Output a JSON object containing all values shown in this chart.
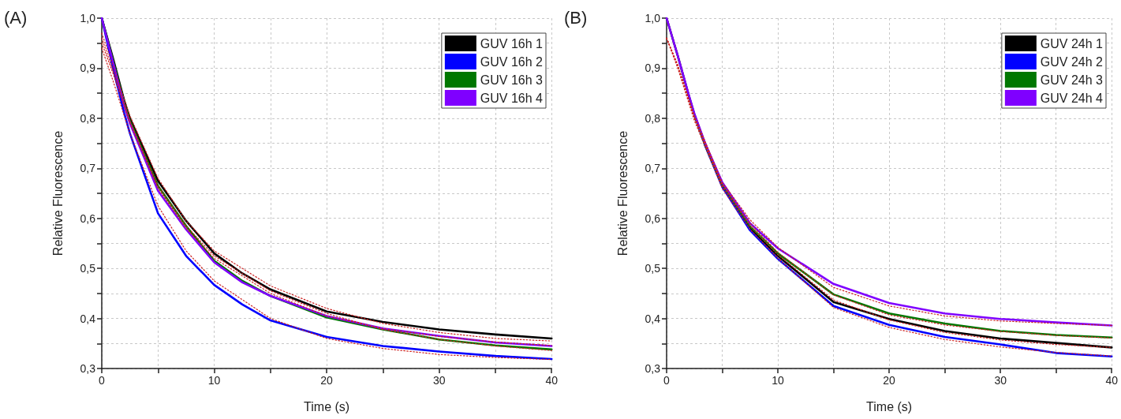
{
  "chart_data": [
    {
      "type": "line",
      "title": "(A)",
      "xlabel": "Time (s)",
      "ylabel": "Relative Fluorescence",
      "x": [
        0,
        1,
        2,
        2.5,
        5,
        7.5,
        10,
        12.5,
        15,
        20,
        25,
        30,
        35,
        40
      ],
      "xlim": [
        0,
        40
      ],
      "xticks": [
        0,
        {
          "value": 5,
          "label": null
        },
        10,
        {
          "value": 15,
          "label": null
        },
        20,
        {
          "value": 25,
          "label": null
        },
        30,
        {
          "value": 35,
          "label": null
        },
        40
      ],
      "ylim": [
        0.3,
        1.0
      ],
      "yticks": [
        {
          "value": 0.3,
          "label": "0,3"
        },
        {
          "value": 0.35,
          "label": null
        },
        {
          "value": 0.4,
          "label": "0,4"
        },
        {
          "value": 0.45,
          "label": null
        },
        {
          "value": 0.5,
          "label": "0,5"
        },
        {
          "value": 0.55,
          "label": null
        },
        {
          "value": 0.6,
          "label": "0,6"
        },
        {
          "value": 0.65,
          "label": null
        },
        {
          "value": 0.7,
          "label": "0,7"
        },
        {
          "value": 0.75,
          "label": null
        },
        {
          "value": 0.8,
          "label": "0,8"
        },
        {
          "value": 0.85,
          "label": null
        },
        {
          "value": 0.9,
          "label": "0,9"
        },
        {
          "value": 0.95,
          "label": null
        },
        {
          "value": 1.0,
          "label": "1,0"
        }
      ],
      "grid": true,
      "legend": "top right",
      "marker": "none",
      "line_style": "solid",
      "series": [
        {
          "name": "GUV 16h 1",
          "color": "#000000",
          "values": [
            1.0,
            0.92,
            0.835,
            0.8,
            0.675,
            0.595,
            0.53,
            0.49,
            0.458,
            0.414,
            0.393,
            0.378,
            0.368,
            0.36
          ]
        },
        {
          "name": "GUV 16h 2",
          "color": "#0000ff",
          "values": [
            1.0,
            0.9,
            0.81,
            0.77,
            0.61,
            0.525,
            0.467,
            0.428,
            0.396,
            0.363,
            0.345,
            0.334,
            0.325,
            0.319
          ]
        },
        {
          "name": "GUV 16h 3",
          "color": "#007700",
          "values": [
            1.0,
            0.915,
            0.83,
            0.795,
            0.665,
            0.585,
            0.515,
            0.475,
            0.445,
            0.402,
            0.378,
            0.358,
            0.346,
            0.338
          ]
        },
        {
          "name": "GUV 16h 4",
          "color": "#7f00ff",
          "values": [
            1.0,
            0.912,
            0.825,
            0.79,
            0.655,
            0.578,
            0.512,
            0.472,
            0.445,
            0.405,
            0.38,
            0.365,
            0.352,
            0.345
          ]
        },
        {
          "type": "line",
          "line_style": "dotted",
          "color": "#cc2222",
          "x": [
            0,
            1,
            2.5,
            5,
            7.5,
            10,
            15,
            20,
            25,
            30,
            35,
            40
          ],
          "values": [
            0.97,
            0.905,
            0.805,
            0.68,
            0.595,
            0.535,
            0.465,
            0.42,
            0.39,
            0.372,
            0.36,
            0.355
          ]
        },
        {
          "type": "line",
          "line_style": "dotted",
          "color": "#cc2222",
          "x": [
            0,
            1,
            2.5,
            5,
            7.5,
            10,
            15,
            20,
            25,
            30,
            35,
            40
          ],
          "values": [
            0.94,
            0.875,
            0.77,
            0.625,
            0.535,
            0.475,
            0.4,
            0.36,
            0.34,
            0.328,
            0.322,
            0.318
          ]
        },
        {
          "type": "line",
          "line_style": "dotted",
          "color": "#cc2222",
          "x": [
            0,
            1,
            2.5,
            5,
            7.5,
            10,
            15,
            20,
            25,
            30,
            35,
            40
          ],
          "values": [
            0.96,
            0.895,
            0.795,
            0.665,
            0.585,
            0.525,
            0.455,
            0.41,
            0.378,
            0.358,
            0.345,
            0.336
          ]
        },
        {
          "type": "line",
          "line_style": "dotted",
          "color": "#cc2222",
          "x": [
            0,
            1,
            2.5,
            5,
            7.5,
            10,
            15,
            20,
            25,
            30,
            35,
            40
          ],
          "values": [
            0.95,
            0.89,
            0.79,
            0.66,
            0.58,
            0.52,
            0.45,
            0.405,
            0.38,
            0.364,
            0.353,
            0.346
          ]
        }
      ]
    },
    {
      "type": "line",
      "title": "(B)",
      "xlabel": "Time (s)",
      "ylabel": "Relative Fluorescence",
      "x": [
        0,
        1,
        2,
        2.5,
        3.5,
        5,
        7.5,
        10,
        15,
        20,
        25,
        30,
        35,
        40
      ],
      "xlim": [
        0,
        40
      ],
      "xticks": [
        0,
        {
          "value": 5,
          "label": null
        },
        10,
        {
          "value": 15,
          "label": null
        },
        20,
        {
          "value": 25,
          "label": null
        },
        30,
        {
          "value": 35,
          "label": null
        },
        40
      ],
      "ylim": [
        0.3,
        1.0
      ],
      "yticks": [
        {
          "value": 0.3,
          "label": "0,3"
        },
        {
          "value": 0.35,
          "label": null
        },
        {
          "value": 0.4,
          "label": "0,4"
        },
        {
          "value": 0.45,
          "label": null
        },
        {
          "value": 0.5,
          "label": "0,5"
        },
        {
          "value": 0.55,
          "label": null
        },
        {
          "value": 0.6,
          "label": "0,6"
        },
        {
          "value": 0.65,
          "label": null
        },
        {
          "value": 0.7,
          "label": "0,7"
        },
        {
          "value": 0.75,
          "label": null
        },
        {
          "value": 0.8,
          "label": "0,8"
        },
        {
          "value": 0.85,
          "label": null
        },
        {
          "value": 0.9,
          "label": "0,9"
        },
        {
          "value": 0.95,
          "label": null
        },
        {
          "value": 1.0,
          "label": "1,0"
        }
      ],
      "grid": true,
      "legend": "top right",
      "marker": "none",
      "line_style": "solid",
      "series": [
        {
          "name": "GUV 24h 1",
          "color": "#000000",
          "values": [
            1.0,
            0.925,
            0.845,
            0.807,
            0.745,
            0.666,
            0.58,
            0.525,
            0.433,
            0.399,
            0.375,
            0.36,
            0.351,
            0.342
          ]
        },
        {
          "name": "GUV 24h 2",
          "color": "#0000ff",
          "values": [
            null,
            null,
            null,
            0.807,
            0.743,
            0.663,
            0.576,
            0.519,
            0.425,
            0.387,
            0.363,
            0.348,
            0.331,
            0.324
          ]
        },
        {
          "name": "GUV 24h 3",
          "color": "#007700",
          "values": [
            null,
            null,
            null,
            0.807,
            0.745,
            0.668,
            0.584,
            0.53,
            0.448,
            0.41,
            0.39,
            0.375,
            0.367,
            0.362
          ]
        },
        {
          "name": "GUV 24h 4",
          "color": "#7f00ff",
          "values": [
            1.0,
            0.925,
            0.846,
            0.809,
            0.748,
            0.672,
            0.59,
            0.54,
            0.469,
            0.431,
            0.41,
            0.399,
            0.392,
            0.386
          ]
        },
        {
          "type": "line",
          "line_style": "dotted",
          "color": "#cc2222",
          "x": [
            0,
            1,
            2.5,
            5,
            7.5,
            10,
            15,
            20,
            25,
            30,
            35,
            40
          ],
          "values": [
            0.96,
            0.905,
            0.8,
            0.665,
            0.585,
            0.527,
            0.437,
            0.397,
            0.372,
            0.357,
            0.348,
            0.342
          ]
        },
        {
          "type": "line",
          "line_style": "dotted",
          "color": "#cc2222",
          "x": [
            0,
            1,
            2.5,
            5,
            7.5,
            10,
            15,
            20,
            25,
            30,
            35,
            40
          ],
          "values": [
            0.96,
            0.9,
            0.795,
            0.66,
            0.578,
            0.52,
            0.422,
            0.382,
            0.358,
            0.343,
            0.332,
            0.325
          ]
        },
        {
          "type": "line",
          "line_style": "dotted",
          "color": "#cc2222",
          "x": [
            0,
            1,
            2.5,
            5,
            7.5,
            10,
            15,
            20,
            25,
            30,
            35,
            40
          ],
          "values": [
            0.96,
            0.905,
            0.8,
            0.668,
            0.59,
            0.532,
            0.447,
            0.407,
            0.387,
            0.374,
            0.366,
            0.361
          ]
        },
        {
          "type": "line",
          "line_style": "dotted",
          "color": "#cc2222",
          "x": [
            0,
            1,
            2.5,
            5,
            7.5,
            10,
            15,
            20,
            25,
            30,
            35,
            40
          ],
          "values": [
            0.96,
            0.907,
            0.805,
            0.672,
            0.597,
            0.542,
            0.462,
            0.425,
            0.405,
            0.395,
            0.39,
            0.386
          ]
        }
      ]
    }
  ]
}
